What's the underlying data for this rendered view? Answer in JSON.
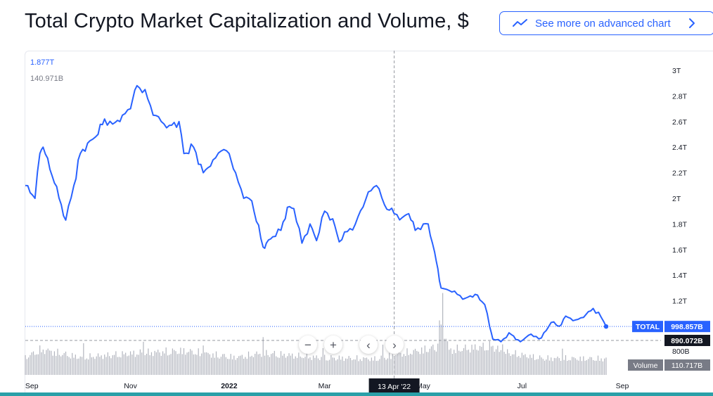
{
  "header": {
    "title": "Total Crypto Market Capitalization and Volume, $",
    "advanced_button_label": "See more on advanced chart"
  },
  "legend": {
    "total_value": "1.877T",
    "volume_value": "140.971B"
  },
  "controls": {
    "zoom_out": "−",
    "zoom_in": "+",
    "scroll_left": "‹",
    "scroll_right": "›"
  },
  "chart_data": {
    "type": "line",
    "series": [
      {
        "name": "TOTAL",
        "x": [
          "2021-08-28",
          "2021-09-03",
          "2021-09-06",
          "2021-09-08",
          "2021-09-15",
          "2021-09-22",
          "2021-09-27",
          "2021-10-01",
          "2021-10-07",
          "2021-10-12",
          "2021-10-16",
          "2021-10-21",
          "2021-10-27",
          "2021-11-01",
          "2021-11-05",
          "2021-11-10",
          "2021-11-15",
          "2021-11-20",
          "2021-11-25",
          "2021-12-01",
          "2021-12-04",
          "2021-12-10",
          "2021-12-16",
          "2021-12-22",
          "2021-12-27",
          "2022-01-01",
          "2022-01-05",
          "2022-01-10",
          "2022-01-15",
          "2022-01-22",
          "2022-01-24",
          "2022-01-28",
          "2022-02-02",
          "2022-02-06",
          "2022-02-10",
          "2022-02-15",
          "2022-02-20",
          "2022-02-24",
          "2022-03-01",
          "2022-03-06",
          "2022-03-10",
          "2022-03-15",
          "2022-03-20",
          "2022-03-28",
          "2022-04-02",
          "2022-04-07",
          "2022-04-13",
          "2022-04-18",
          "2022-04-22",
          "2022-04-26",
          "2022-05-01",
          "2022-05-04",
          "2022-05-08",
          "2022-05-10",
          "2022-05-12",
          "2022-05-17",
          "2022-05-22",
          "2022-05-27",
          "2022-06-02",
          "2022-06-08",
          "2022-06-11",
          "2022-06-13",
          "2022-06-18",
          "2022-06-23",
          "2022-06-30",
          "2022-07-05",
          "2022-07-13",
          "2022-07-19",
          "2022-07-24",
          "2022-07-28",
          "2022-08-03",
          "2022-08-08",
          "2022-08-14",
          "2022-08-19",
          "2022-08-22"
        ],
        "values": [
          2.1,
          2.0,
          2.35,
          2.4,
          2.12,
          1.83,
          2.1,
          2.35,
          2.45,
          2.5,
          2.62,
          2.58,
          2.65,
          2.7,
          2.88,
          2.85,
          2.65,
          2.6,
          2.57,
          2.6,
          2.35,
          2.4,
          2.2,
          2.3,
          2.37,
          2.35,
          2.2,
          2.0,
          1.98,
          1.62,
          1.65,
          1.7,
          1.75,
          1.93,
          1.92,
          1.65,
          1.8,
          1.67,
          1.9,
          1.84,
          1.66,
          1.74,
          1.8,
          2.05,
          2.1,
          1.95,
          1.88,
          1.85,
          1.88,
          1.75,
          1.8,
          1.8,
          1.58,
          1.45,
          1.3,
          1.28,
          1.25,
          1.22,
          1.25,
          1.17,
          1.0,
          0.9,
          0.88,
          0.95,
          0.88,
          0.93,
          0.91,
          1.03,
          1.0,
          1.08,
          1.05,
          1.07,
          1.14,
          1.07,
          0.999
        ]
      },
      {
        "name": "Volume",
        "x": [
          "2021-08-28",
          "2021-09-07",
          "2021-10-01",
          "2021-11-05",
          "2021-12-04",
          "2022-01-05",
          "2022-01-22",
          "2022-02-24",
          "2022-04-01",
          "2022-05-09",
          "2022-05-12",
          "2022-05-17",
          "2022-06-13",
          "2022-06-18",
          "2022-07-13",
          "2022-08-19"
        ],
        "values": [
          120,
          175,
          120,
          150,
          165,
          120,
          150,
          120,
          110,
          190,
          380,
          170,
          200,
          160,
          115,
          111
        ]
      }
    ],
    "price_labels": {
      "TOTAL": "998.857B",
      "Volume": "110.717B",
      "crosshair": "890.072B",
      "crosshair_date": "13 Apr '22"
    },
    "y_ticks": [
      "3T",
      "2.8T",
      "2.6T",
      "2.4T",
      "2.2T",
      "2T",
      "1.8T",
      "1.6T",
      "1.4T",
      "1.2T",
      "800B"
    ],
    "x_ticks": [
      "Sep",
      "Nov",
      "2022",
      "Mar",
      "May",
      "Jul",
      "Sep"
    ],
    "colors": {
      "line": "#2962ff",
      "volume": "#b2b5be",
      "crosshair": "#9598a1",
      "tag_dark": "#131722",
      "tag_gray": "#787b86"
    }
  }
}
